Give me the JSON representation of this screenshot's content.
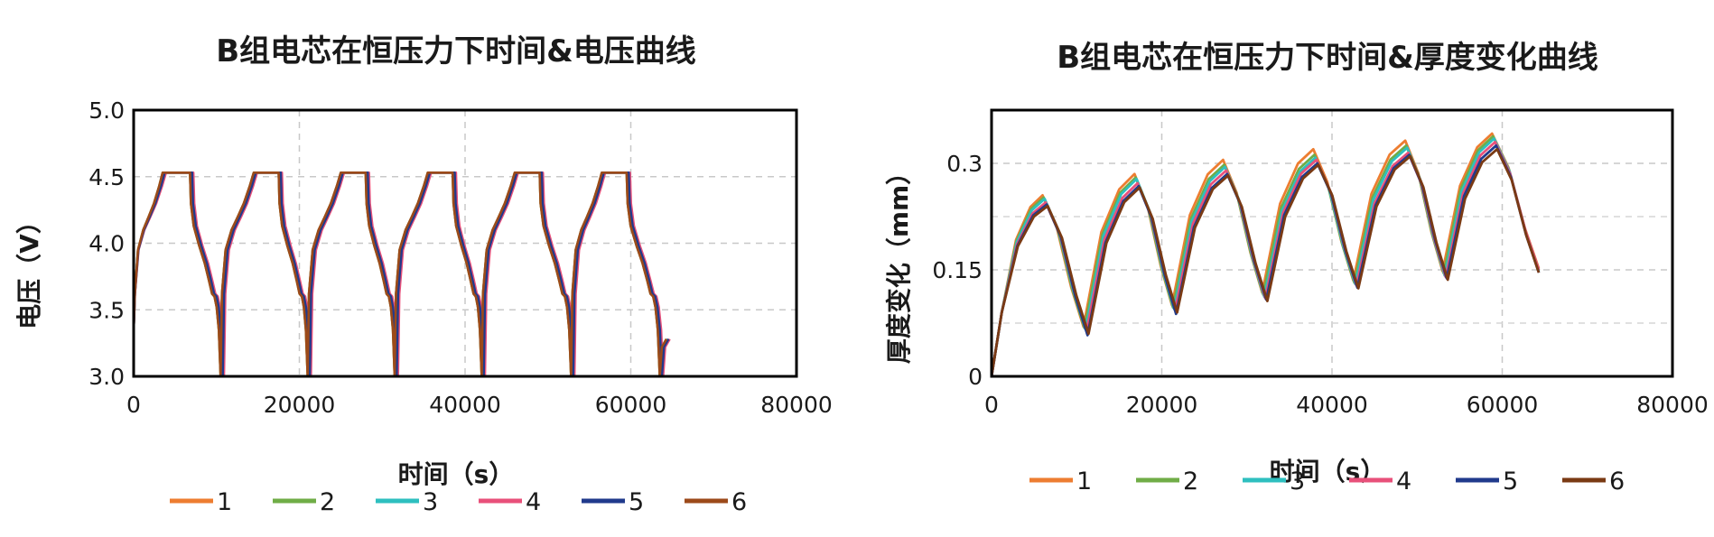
{
  "chart_data": [
    {
      "type": "line",
      "title": "B组电芯在恒压力下时间&电压曲线",
      "xlabel": "时间（s）",
      "ylabel": "电压（V）",
      "xlim": [
        0,
        80000
      ],
      "ylim": [
        3.0,
        5.0
      ],
      "xticks": [
        0,
        20000,
        40000,
        60000,
        80000
      ],
      "yticks": [
        3.0,
        3.5,
        4.0,
        4.5,
        5.0
      ],
      "xtick_labels": [
        "0",
        "20000",
        "40000",
        "60000",
        "80000"
      ],
      "ytick_labels": [
        "3.0",
        "3.5",
        "4.0",
        "4.5",
        "5.0"
      ],
      "grid": true,
      "legend": "bottom",
      "series": [
        {
          "name": "1",
          "color": "#ED7D31",
          "offset": 0
        },
        {
          "name": "2",
          "color": "#70AD47",
          "offset": 0
        },
        {
          "name": "3",
          "color": "#2EBFBF",
          "offset": 150
        },
        {
          "name": "4",
          "color": "#E8507A",
          "offset": 400
        },
        {
          "name": "5",
          "color": "#203A8C",
          "offset": 250
        },
        {
          "name": "6",
          "color": "#9C4A1A",
          "offset": 0
        }
      ],
      "cycles": [
        {
          "start": 0,
          "cv_start": 3500,
          "cv_end": 6800,
          "end": 10500
        },
        {
          "start": 10500,
          "cv_start": 14500,
          "cv_end": 17500,
          "end": 21000
        },
        {
          "start": 21000,
          "cv_start": 25000,
          "cv_end": 28000,
          "end": 31500
        },
        {
          "start": 31500,
          "cv_start": 35500,
          "cv_end": 38500,
          "end": 42000
        },
        {
          "start": 42000,
          "cv_start": 46000,
          "cv_end": 49000,
          "end": 52800
        },
        {
          "start": 52800,
          "cv_start": 56500,
          "cv_end": 59500,
          "end": 63500
        }
      ],
      "final_time": 64300
    },
    {
      "type": "line",
      "title": "B组电芯在恒压力下时间&厚度变化曲线",
      "xlabel": "时间（s）",
      "ylabel": "厚度变化（mm）",
      "xlim": [
        0,
        80000
      ],
      "ylim": [
        0,
        0.375
      ],
      "xticks": [
        0,
        20000,
        40000,
        60000,
        80000
      ],
      "yticks": [
        0,
        0.15,
        0.3
      ],
      "xtick_labels": [
        "0",
        "20000",
        "40000",
        "60000",
        "80000"
      ],
      "ytick_labels": [
        "0",
        "0.15",
        "0.3"
      ],
      "grid": true,
      "legend": "bottom",
      "series": [
        {
          "name": "1",
          "color": "#ED7D31",
          "peaks": [
            0.255,
            0.285,
            0.305,
            0.32,
            0.332,
            0.342
          ],
          "troughs": [
            0.07,
            0.1,
            0.118,
            0.135,
            0.148,
            0.152
          ]
        },
        {
          "name": "2",
          "color": "#70AD47",
          "peaks": [
            0.252,
            0.28,
            0.298,
            0.312,
            0.325,
            0.338
          ],
          "troughs": [
            0.068,
            0.097,
            0.115,
            0.132,
            0.145,
            0.15
          ]
        },
        {
          "name": "3",
          "color": "#2EBFBF",
          "peaks": [
            0.25,
            0.278,
            0.295,
            0.308,
            0.322,
            0.335
          ],
          "troughs": [
            0.066,
            0.095,
            0.112,
            0.13,
            0.142,
            0.148
          ]
        },
        {
          "name": "4",
          "color": "#E8507A",
          "peaks": [
            0.245,
            0.272,
            0.29,
            0.305,
            0.315,
            0.33
          ],
          "troughs": [
            0.064,
            0.093,
            0.11,
            0.128,
            0.14,
            0.15
          ]
        },
        {
          "name": "5",
          "color": "#203A8C",
          "peaks": [
            0.242,
            0.268,
            0.285,
            0.3,
            0.312,
            0.325
          ],
          "troughs": [
            0.058,
            0.088,
            0.108,
            0.125,
            0.138,
            0.146
          ]
        },
        {
          "name": "6",
          "color": "#7A3A14",
          "peaks": [
            0.24,
            0.266,
            0.283,
            0.298,
            0.31,
            0.32
          ],
          "troughs": [
            0.06,
            0.09,
            0.106,
            0.124,
            0.136,
            0.146
          ]
        }
      ],
      "peak_times": [
        6000,
        16800,
        27200,
        37800,
        48600,
        58800
      ],
      "trough_times": [
        10800,
        21200,
        31800,
        42500,
        53000
      ],
      "final_time": 64300
    }
  ]
}
